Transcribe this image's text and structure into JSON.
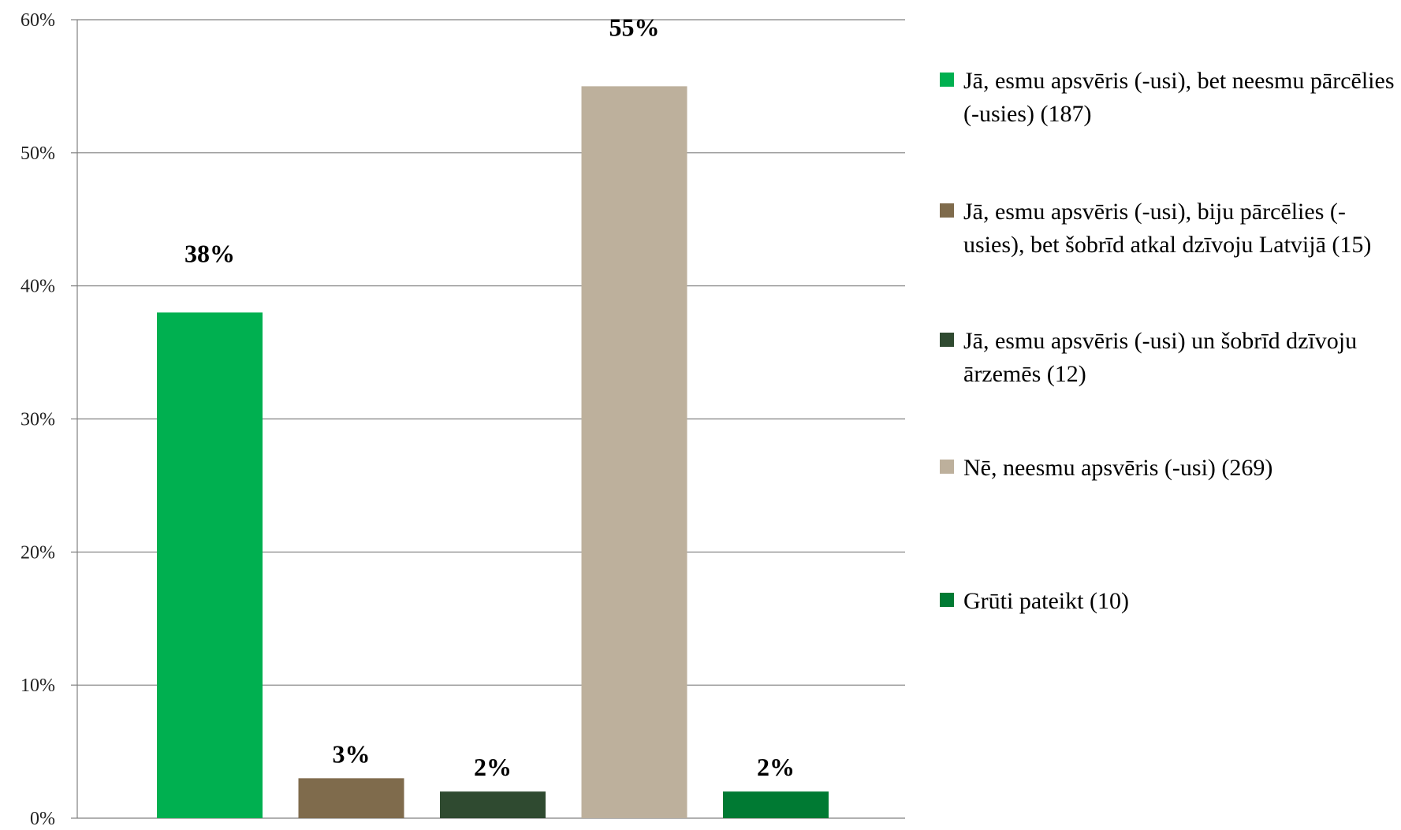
{
  "chart_data": {
    "type": "bar",
    "ylim": [
      0,
      60
    ],
    "yticks": [
      "0%",
      "10%",
      "20%",
      "30%",
      "40%",
      "50%",
      "60%"
    ],
    "grid": true,
    "legend_position": "right",
    "series": [
      {
        "name": "Jā, esmu apsvēris (-usi), bet neesmu pārcēlies (-usies)  (187)",
        "value": 38,
        "label": "38%",
        "color": "#00B050"
      },
      {
        "name": "Jā, esmu apsvēris (-usi), biju pārcēlies (-usies), bet šobrīd atkal dzīvoju Latvijā  (15)",
        "value": 3,
        "label": "3%",
        "color": "#7F6B4C"
      },
      {
        "name": "Jā, esmu apsvēris (-usi) un šobrīd dzīvoju ārzemēs  (12)",
        "value": 2,
        "label": "2%",
        "color": "#2F4A30"
      },
      {
        "name": "Nē, neesmu apsvēris (-usi)  (269)",
        "value": 55,
        "label": "55%",
        "color": "#BDB09C"
      },
      {
        "name": "Grūti pateikt  (10)",
        "value": 2,
        "label": "2%",
        "color": "#007A33"
      }
    ],
    "axis_color": "#808080",
    "grid_color": "#808080"
  }
}
